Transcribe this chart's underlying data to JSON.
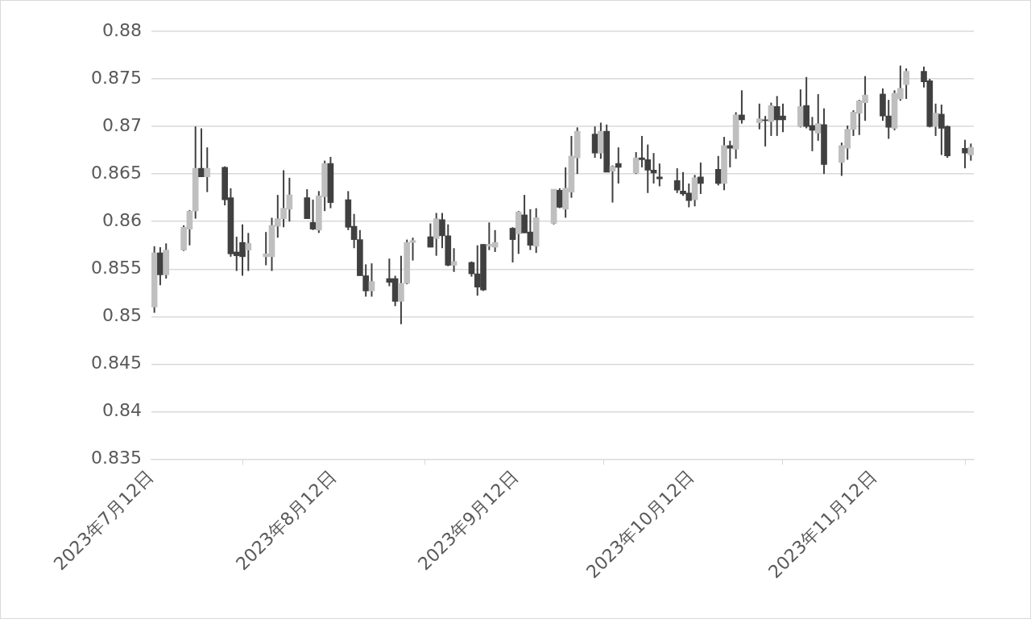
{
  "chart_data": {
    "type": "candlestick",
    "x": [
      "2023-07-12T12:00",
      "2023-07-13T12:00",
      "2023-07-14T12:00",
      "2023-07-17T12:00",
      "2023-07-18T12:00",
      "2023-07-19T12:00",
      "2023-07-20T12:00",
      "2023-07-21T12:00",
      "2023-07-24T12:00",
      "2023-07-25T12:00",
      "2023-07-26T12:00",
      "2023-07-27T12:00",
      "2023-07-28T12:00",
      "2023-07-31T12:00",
      "2023-08-01T12:00",
      "2023-08-02T12:00",
      "2023-08-03T12:00",
      "2023-08-04T12:00",
      "2023-08-07T12:00",
      "2023-08-08T12:00",
      "2023-08-09T12:00",
      "2023-08-10T12:00",
      "2023-08-11T12:00",
      "2023-08-14T12:00",
      "2023-08-15T12:00",
      "2023-08-16T12:00",
      "2023-08-17T12:00",
      "2023-08-18T12:00",
      "2023-08-21T12:00",
      "2023-08-22T12:00",
      "2023-08-23T12:00",
      "2023-08-24T12:00",
      "2023-08-25T12:00",
      "2023-08-28T12:00",
      "2023-08-29T12:00",
      "2023-08-30T12:00",
      "2023-08-31T12:00",
      "2023-09-01T12:00",
      "2023-09-04T12:00",
      "2023-09-05T12:00",
      "2023-09-06T12:00",
      "2023-09-07T12:00",
      "2023-09-08T12:00",
      "2023-09-11T12:00",
      "2023-09-12T12:00",
      "2023-09-13T12:00",
      "2023-09-14T12:00",
      "2023-09-15T12:00",
      "2023-09-18T12:00",
      "2023-09-19T12:00",
      "2023-09-20T12:00",
      "2023-09-21T12:00",
      "2023-09-22T12:00",
      "2023-09-25T12:00",
      "2023-09-26T12:00",
      "2023-09-27T12:00",
      "2023-09-28T12:00",
      "2023-09-29T12:00",
      "2023-10-02T12:00",
      "2023-10-03T12:00",
      "2023-10-04T12:00",
      "2023-10-05T12:00",
      "2023-10-06T12:00",
      "2023-10-09T12:00",
      "2023-10-10T12:00",
      "2023-10-11T12:00",
      "2023-10-12T12:00",
      "2023-10-13T12:00",
      "2023-10-16T12:00",
      "2023-10-17T12:00",
      "2023-10-18T12:00",
      "2023-10-19T12:00",
      "2023-10-20T12:00",
      "2023-10-23T12:00",
      "2023-10-24T12:00",
      "2023-10-25T12:00",
      "2023-10-26T12:00",
      "2023-10-27T12:00",
      "2023-10-30T12:00",
      "2023-10-31T12:00",
      "2023-11-01T12:00",
      "2023-11-02T12:00",
      "2023-11-03T12:00",
      "2023-11-06T12:00",
      "2023-11-07T12:00",
      "2023-11-08T12:00",
      "2023-11-09T12:00",
      "2023-11-10T12:00",
      "2023-11-13T12:00",
      "2023-11-14T12:00",
      "2023-11-15T12:00",
      "2023-11-16T12:00",
      "2023-11-17T12:00",
      "2023-11-20T12:00",
      "2023-11-21T12:00",
      "2023-11-22T12:00",
      "2023-11-23T12:00",
      "2023-11-24T12:00",
      "2023-11-27T12:00",
      "2023-11-28T12:00"
    ],
    "ohlc": [
      [
        0.851,
        0.8574,
        0.8504,
        0.8567
      ],
      [
        0.8567,
        0.8573,
        0.8533,
        0.8544
      ],
      [
        0.8544,
        0.8577,
        0.854,
        0.857
      ],
      [
        0.857,
        0.8596,
        0.8569,
        0.8594
      ],
      [
        0.8592,
        0.8612,
        0.8575,
        0.8611
      ],
      [
        0.8611,
        0.87,
        0.8603,
        0.8656
      ],
      [
        0.8656,
        0.8698,
        0.8647,
        0.8647
      ],
      [
        0.8647,
        0.8678,
        0.8631,
        0.8656
      ],
      [
        0.8657,
        0.8658,
        0.8617,
        0.8623
      ],
      [
        0.8625,
        0.8635,
        0.8563,
        0.8566
      ],
      [
        0.8568,
        0.8584,
        0.8548,
        0.8564
      ],
      [
        0.8578,
        0.8597,
        0.8543,
        0.8563
      ],
      [
        0.857,
        0.8588,
        0.8548,
        0.8577
      ],
      [
        0.8563,
        0.8589,
        0.8554,
        0.8566
      ],
      [
        0.8563,
        0.8604,
        0.8548,
        0.8596
      ],
      [
        0.8595,
        0.8628,
        0.8583,
        0.8603
      ],
      [
        0.8603,
        0.8654,
        0.8594,
        0.8614
      ],
      [
        0.8613,
        0.8646,
        0.86,
        0.8628
      ],
      [
        0.8625,
        0.8634,
        0.8603,
        0.8603
      ],
      [
        0.8599,
        0.8623,
        0.8591,
        0.8592
      ],
      [
        0.8591,
        0.8632,
        0.8588,
        0.8627
      ],
      [
        0.8626,
        0.8664,
        0.8611,
        0.8661
      ],
      [
        0.8661,
        0.8668,
        0.8614,
        0.862
      ],
      [
        0.8623,
        0.8632,
        0.8591,
        0.8594
      ],
      [
        0.8595,
        0.8608,
        0.8572,
        0.8581
      ],
      [
        0.8581,
        0.8591,
        0.8543,
        0.8543
      ],
      [
        0.8543,
        0.8555,
        0.8521,
        0.8527
      ],
      [
        0.8527,
        0.8556,
        0.8521,
        0.8537
      ],
      [
        0.854,
        0.8561,
        0.8532,
        0.8536
      ],
      [
        0.854,
        0.8543,
        0.8511,
        0.8516
      ],
      [
        0.8516,
        0.8564,
        0.8492,
        0.8535
      ],
      [
        0.8535,
        0.8581,
        0.8534,
        0.8578
      ],
      [
        0.8578,
        0.8583,
        0.8559,
        0.858
      ],
      [
        0.8584,
        0.8598,
        0.8573,
        0.8573
      ],
      [
        0.8582,
        0.8609,
        0.8564,
        0.8603
      ],
      [
        0.8602,
        0.8609,
        0.8572,
        0.8585
      ],
      [
        0.8585,
        0.8597,
        0.8553,
        0.8554
      ],
      [
        0.8554,
        0.8572,
        0.8547,
        0.8558
      ],
      [
        0.8557,
        0.8558,
        0.8542,
        0.8545
      ],
      [
        0.8545,
        0.8575,
        0.8522,
        0.8531
      ],
      [
        0.8576,
        0.8576,
        0.8527,
        0.8528
      ],
      [
        0.8574,
        0.8599,
        0.857,
        0.8576
      ],
      [
        0.8573,
        0.8591,
        0.8568,
        0.8578
      ],
      [
        0.8593,
        0.8594,
        0.8557,
        0.8581
      ],
      [
        0.8587,
        0.8611,
        0.8566,
        0.861
      ],
      [
        0.8607,
        0.8628,
        0.8588,
        0.8588
      ],
      [
        0.8589,
        0.8613,
        0.857,
        0.8575
      ],
      [
        0.8574,
        0.8614,
        0.8567,
        0.8604
      ],
      [
        0.8598,
        0.8634,
        0.8597,
        0.8634
      ],
      [
        0.8633,
        0.8635,
        0.8614,
        0.8615
      ],
      [
        0.8613,
        0.8657,
        0.8604,
        0.8635
      ],
      [
        0.8631,
        0.869,
        0.8625,
        0.8669
      ],
      [
        0.8667,
        0.8699,
        0.865,
        0.8695
      ],
      [
        0.8692,
        0.87,
        0.8667,
        0.8672
      ],
      [
        0.8672,
        0.8704,
        0.8666,
        0.8695
      ],
      [
        0.8695,
        0.8702,
        0.8652,
        0.8652
      ],
      [
        0.8653,
        0.8659,
        0.862,
        0.8658
      ],
      [
        0.8661,
        0.8678,
        0.864,
        0.8657
      ],
      [
        0.8651,
        0.8673,
        0.865,
        0.8667
      ],
      [
        0.8667,
        0.869,
        0.8657,
        0.8665
      ],
      [
        0.8665,
        0.8681,
        0.863,
        0.8654
      ],
      [
        0.8654,
        0.8672,
        0.864,
        0.8651
      ],
      [
        0.8647,
        0.8661,
        0.8637,
        0.8645
      ],
      [
        0.8643,
        0.8656,
        0.863,
        0.8633
      ],
      [
        0.8632,
        0.8652,
        0.8627,
        0.8629
      ],
      [
        0.863,
        0.864,
        0.8615,
        0.8622
      ],
      [
        0.8623,
        0.8649,
        0.8616,
        0.8646
      ],
      [
        0.8647,
        0.8662,
        0.8629,
        0.864
      ],
      [
        0.8655,
        0.8669,
        0.8638,
        0.864
      ],
      [
        0.864,
        0.8689,
        0.8633,
        0.868
      ],
      [
        0.868,
        0.8685,
        0.8657,
        0.8677
      ],
      [
        0.8676,
        0.8715,
        0.8666,
        0.8712
      ],
      [
        0.8712,
        0.8738,
        0.8703,
        0.8707
      ],
      [
        0.8704,
        0.8724,
        0.8697,
        0.8708
      ],
      [
        0.8707,
        0.8711,
        0.8679,
        0.8706
      ],
      [
        0.8705,
        0.8725,
        0.869,
        0.8722
      ],
      [
        0.8721,
        0.8732,
        0.869,
        0.8707
      ],
      [
        0.8711,
        0.8724,
        0.8694,
        0.8707
      ],
      [
        0.87,
        0.8739,
        0.8699,
        0.8721
      ],
      [
        0.8722,
        0.8752,
        0.8698,
        0.87
      ],
      [
        0.8701,
        0.871,
        0.8674,
        0.8696
      ],
      [
        0.8693,
        0.8734,
        0.8685,
        0.8703
      ],
      [
        0.8702,
        0.8719,
        0.865,
        0.866
      ],
      [
        0.8662,
        0.8683,
        0.8648,
        0.868
      ],
      [
        0.8677,
        0.8701,
        0.8665,
        0.8697
      ],
      [
        0.8697,
        0.8717,
        0.869,
        0.8715
      ],
      [
        0.8714,
        0.8728,
        0.8691,
        0.8727
      ],
      [
        0.8725,
        0.8753,
        0.8706,
        0.8733
      ],
      [
        0.8734,
        0.874,
        0.8706,
        0.8711
      ],
      [
        0.8711,
        0.8728,
        0.8687,
        0.8699
      ],
      [
        0.8698,
        0.8738,
        0.8696,
        0.8735
      ],
      [
        0.8729,
        0.8764,
        0.8727,
        0.874
      ],
      [
        0.8744,
        0.8761,
        0.8729,
        0.8758
      ],
      [
        0.8758,
        0.8763,
        0.8741,
        0.8747
      ],
      [
        0.8748,
        0.875,
        0.8699,
        0.87
      ],
      [
        0.87,
        0.8724,
        0.869,
        0.8714
      ],
      [
        0.8713,
        0.8723,
        0.867,
        0.8698
      ],
      [
        0.87,
        0.8701,
        0.8667,
        0.8669
      ],
      [
        0.8677,
        0.8686,
        0.8656,
        0.8672
      ],
      [
        0.867,
        0.8682,
        0.8664,
        0.8678
      ]
    ],
    "color": "#404040",
    "colors": [
      "#bfbfbf",
      "#404040",
      "#bfbfbf",
      "#bfbfbf",
      "#bfbfbf",
      "#bfbfbf",
      "#404040",
      "#bfbfbf",
      "#404040",
      "#404040",
      "#404040",
      "#404040",
      "#bfbfbf",
      "#bfbfbf",
      "#bfbfbf",
      "#bfbfbf",
      "#bfbfbf",
      "#bfbfbf",
      "#404040",
      "#404040",
      "#bfbfbf",
      "#bfbfbf",
      "#404040",
      "#404040",
      "#404040",
      "#404040",
      "#404040",
      "#bfbfbf",
      "#404040",
      "#404040",
      "#bfbfbf",
      "#bfbfbf",
      "#bfbfbf",
      "#404040",
      "#bfbfbf",
      "#404040",
      "#404040",
      "#bfbfbf",
      "#404040",
      "#404040",
      "#404040",
      "#bfbfbf",
      "#bfbfbf",
      "#404040",
      "#bfbfbf",
      "#404040",
      "#404040",
      "#bfbfbf",
      "#bfbfbf",
      "#404040",
      "#bfbfbf",
      "#bfbfbf",
      "#bfbfbf",
      "#404040",
      "#bfbfbf",
      "#404040",
      "#bfbfbf",
      "#404040",
      "#bfbfbf",
      "#404040",
      "#404040",
      "#404040",
      "#404040",
      "#404040",
      "#404040",
      "#404040",
      "#bfbfbf",
      "#404040",
      "#404040",
      "#bfbfbf",
      "#404040",
      "#bfbfbf",
      "#404040",
      "#bfbfbf",
      "#404040",
      "#bfbfbf",
      "#404040",
      "#404040",
      "#bfbfbf",
      "#404040",
      "#404040",
      "#bfbfbf",
      "#404040",
      "#bfbfbf",
      "#bfbfbf",
      "#bfbfbf",
      "#bfbfbf",
      "#bfbfbf",
      "#404040",
      "#404040",
      "#bfbfbf",
      "#bfbfbf",
      "#bfbfbf",
      "#404040",
      "#404040",
      "#bfbfbf",
      "#404040",
      "#404040",
      "#404040",
      "#bfbfbf"
    ],
    "xlim": [
      "2023-07-12",
      "2023-11-29"
    ],
    "xticks": [
      {
        "value": "2023-07-12",
        "label": "2023年7月12日"
      },
      {
        "value": "2023-08-12",
        "label": "2023年8月12日"
      },
      {
        "value": "2023-09-12",
        "label": "2023年9月12日"
      },
      {
        "value": "2023-10-12",
        "label": "2023年10月12日"
      },
      {
        "value": "2023-11-12",
        "label": "2023年11月12日"
      }
    ],
    "ylim": [
      0.835,
      0.88
    ],
    "yticks": [
      0.835,
      0.84,
      0.845,
      0.85,
      0.855,
      0.86,
      0.865,
      0.87,
      0.875,
      0.88
    ],
    "grid": "y",
    "legend": false
  }
}
